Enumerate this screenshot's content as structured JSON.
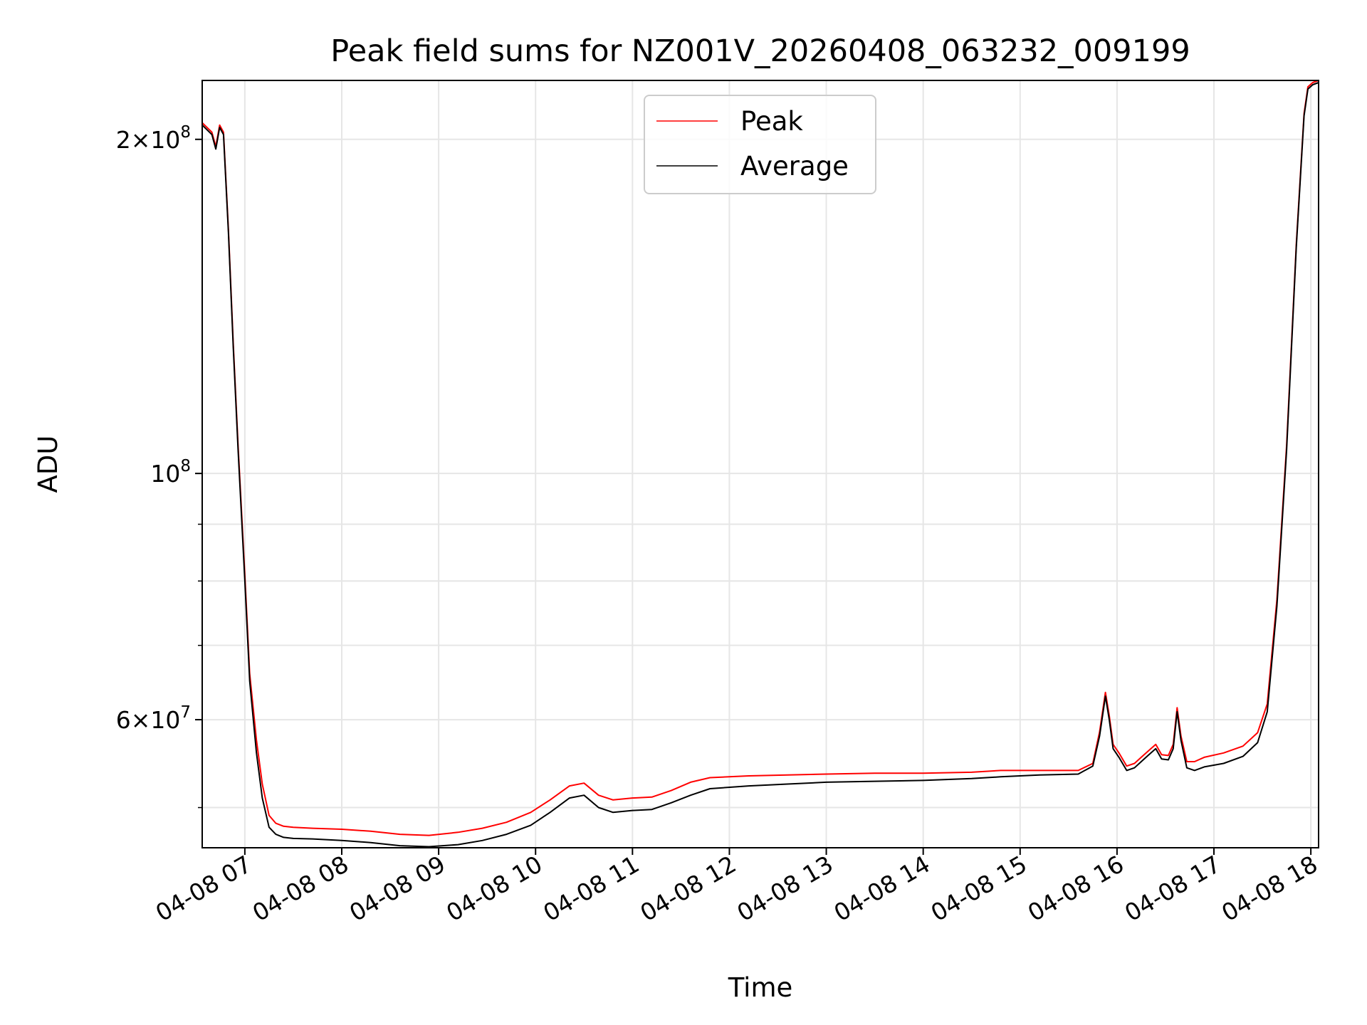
{
  "chart_data": {
    "type": "line",
    "title": "Peak field sums for NZ001V_20260408_063232_009199",
    "xlabel": "Time",
    "ylabel": "ADU",
    "yscale": "log",
    "xlim": [
      6.56,
      18.08
    ],
    "ylim": [
      46000000,
      226000000
    ],
    "grid": true,
    "legend_position": "top-center",
    "x_ticks": [
      {
        "value": 7,
        "label": "04-08 07"
      },
      {
        "value": 8,
        "label": "04-08 08"
      },
      {
        "value": 9,
        "label": "04-08 09"
      },
      {
        "value": 10,
        "label": "04-08 10"
      },
      {
        "value": 11,
        "label": "04-08 11"
      },
      {
        "value": 12,
        "label": "04-08 12"
      },
      {
        "value": 13,
        "label": "04-08 13"
      },
      {
        "value": 14,
        "label": "04-08 14"
      },
      {
        "value": 15,
        "label": "04-08 15"
      },
      {
        "value": 16,
        "label": "04-08 16"
      },
      {
        "value": 17,
        "label": "04-08 17"
      },
      {
        "value": 18,
        "label": "04-08 18"
      }
    ],
    "y_major_ticks": [
      {
        "value": 60000000,
        "base": "6",
        "exp": "7",
        "mantissa": true
      },
      {
        "value": 100000000,
        "base": "10",
        "exp": "8",
        "mantissa": false
      },
      {
        "value": 200000000,
        "base": "2",
        "exp": "8",
        "mantissa": true
      }
    ],
    "y_minor_ticks": [
      50000000,
      70000000,
      80000000,
      90000000
    ],
    "series": [
      {
        "name": "Average",
        "color": "#000000",
        "x": [
          6.56,
          6.66,
          6.7,
          6.74,
          6.78,
          6.83,
          6.88,
          6.93,
          7.0,
          7.05,
          7.12,
          7.18,
          7.25,
          7.32,
          7.4,
          7.5,
          7.7,
          8.0,
          8.3,
          8.6,
          8.9,
          9.2,
          9.45,
          9.7,
          9.95,
          10.15,
          10.35,
          10.5,
          10.65,
          10.8,
          11.0,
          11.2,
          11.4,
          11.6,
          11.8,
          12.2,
          12.6,
          13.0,
          13.5,
          14.0,
          14.5,
          14.8,
          15.2,
          15.6,
          15.75,
          15.82,
          15.88,
          15.92,
          15.96,
          16.02,
          16.1,
          16.18,
          16.25,
          16.32,
          16.4,
          16.46,
          16.53,
          16.58,
          16.62,
          16.66,
          16.72,
          16.8,
          16.9,
          17.1,
          17.3,
          17.45,
          17.55,
          17.65,
          17.75,
          17.85,
          17.93,
          17.97,
          18.02,
          18.08
        ],
        "y": [
          206000000,
          202000000,
          196000000,
          205000000,
          202000000,
          165000000,
          130000000,
          105000000,
          80000000,
          65000000,
          56000000,
          51000000,
          48000000,
          47300000,
          47000000,
          46900000,
          46850000,
          46700000,
          46500000,
          46200000,
          46100000,
          46300000,
          46700000,
          47300000,
          48200000,
          49500000,
          51000000,
          51300000,
          50000000,
          49500000,
          49700000,
          49800000,
          50500000,
          51300000,
          52000000,
          52300000,
          52500000,
          52700000,
          52800000,
          52900000,
          53100000,
          53300000,
          53500000,
          53600000,
          54500000,
          58000000,
          63000000,
          60000000,
          56500000,
          55500000,
          54000000,
          54300000,
          55000000,
          55700000,
          56500000,
          55300000,
          55200000,
          56500000,
          61000000,
          57500000,
          54300000,
          54000000,
          54400000,
          54800000,
          55600000,
          57200000,
          61000000,
          76000000,
          105000000,
          160000000,
          210000000,
          222000000,
          224000000,
          225000000
        ]
      },
      {
        "name": "Peak",
        "color": "#ff0000",
        "x": [
          6.56,
          6.66,
          6.7,
          6.74,
          6.78,
          6.83,
          6.88,
          6.93,
          7.0,
          7.05,
          7.12,
          7.18,
          7.25,
          7.32,
          7.4,
          7.5,
          7.7,
          8.0,
          8.3,
          8.6,
          8.9,
          9.2,
          9.45,
          9.7,
          9.95,
          10.15,
          10.35,
          10.5,
          10.65,
          10.8,
          11.0,
          11.2,
          11.4,
          11.6,
          11.8,
          12.2,
          12.6,
          13.0,
          13.5,
          14.0,
          14.5,
          14.8,
          15.2,
          15.6,
          15.75,
          15.82,
          15.88,
          15.92,
          15.96,
          16.02,
          16.1,
          16.18,
          16.25,
          16.32,
          16.4,
          16.46,
          16.53,
          16.58,
          16.62,
          16.66,
          16.72,
          16.8,
          16.9,
          17.1,
          17.3,
          17.45,
          17.55,
          17.65,
          17.75,
          17.85,
          17.93,
          17.97,
          18.02,
          18.08
        ],
        "y": [
          207000000,
          203000000,
          197000000,
          206000000,
          203000000,
          166000000,
          131000000,
          106000000,
          81000000,
          66000000,
          57500000,
          52500000,
          49200000,
          48400000,
          48100000,
          48000000,
          47900000,
          47800000,
          47600000,
          47300000,
          47200000,
          47500000,
          47900000,
          48500000,
          49500000,
          50800000,
          52300000,
          52600000,
          51300000,
          50800000,
          51000000,
          51100000,
          51800000,
          52700000,
          53200000,
          53400000,
          53500000,
          53600000,
          53700000,
          53700000,
          53800000,
          54000000,
          54000000,
          54000000,
          54800000,
          58500000,
          63500000,
          60500000,
          57000000,
          56000000,
          54500000,
          54800000,
          55500000,
          56200000,
          57000000,
          55800000,
          55700000,
          57000000,
          61500000,
          58000000,
          55000000,
          55000000,
          55500000,
          56000000,
          56800000,
          58400000,
          62000000,
          77000000,
          106000000,
          161000000,
          211000000,
          223000000,
          225000000,
          226000000
        ]
      }
    ]
  }
}
